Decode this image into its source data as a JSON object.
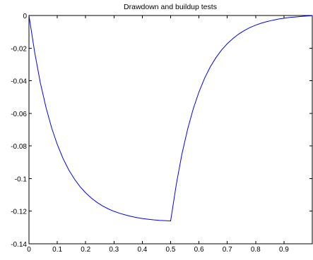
{
  "chart_data": {
    "type": "line",
    "title": "Drawdown and buildup tests",
    "xlabel": "",
    "ylabel": "",
    "xlim": [
      0,
      1
    ],
    "ylim": [
      -0.14,
      0
    ],
    "grid": false,
    "x_ticks": [
      0,
      0.1,
      0.2,
      0.3,
      0.4,
      0.5,
      0.6,
      0.7,
      0.8,
      0.9
    ],
    "x_tick_labels": [
      "0",
      "0.1",
      "0.2",
      "0.3",
      "0.4",
      "0.5",
      "0.6",
      "0.7",
      "0.8",
      "0.9"
    ],
    "y_ticks": [
      0,
      -0.02,
      -0.04,
      -0.06,
      -0.08,
      -0.1,
      -0.12,
      -0.14
    ],
    "y_tick_labels": [
      "0",
      "-0.02",
      "-0.04",
      "-0.06",
      "-0.08",
      "-0.1",
      "-0.12",
      "-0.14"
    ],
    "series": [
      {
        "color": "#0000ff",
        "x": [
          0,
          0.02,
          0.04,
          0.06,
          0.08,
          0.1,
          0.12,
          0.14,
          0.16,
          0.18,
          0.2,
          0.22,
          0.24,
          0.26,
          0.28,
          0.3,
          0.32,
          0.34,
          0.36,
          0.38,
          0.4,
          0.42,
          0.44,
          0.46,
          0.48,
          0.5,
          0.52,
          0.54,
          0.56,
          0.58,
          0.6,
          0.62,
          0.64,
          0.66,
          0.68,
          0.7,
          0.72,
          0.74,
          0.76,
          0.78,
          0.8,
          0.82,
          0.84,
          0.86,
          0.88,
          0.9,
          0.92,
          0.94,
          0.96,
          0.98,
          1.0
        ],
        "y": [
          0,
          -0.0224,
          -0.0411,
          -0.0564,
          -0.0689,
          -0.0791,
          -0.0876,
          -0.0945,
          -0.1002,
          -0.1049,
          -0.1087,
          -0.1119,
          -0.1146,
          -0.1168,
          -0.1186,
          -0.1201,
          -0.1213,
          -0.1223,
          -0.1232,
          -0.1239,
          -0.1245,
          -0.1249,
          -0.1253,
          -0.1256,
          -0.1258,
          -0.126,
          -0.1036,
          -0.0849,
          -0.0696,
          -0.0571,
          -0.0469,
          -0.0384,
          -0.0315,
          -0.0258,
          -0.0211,
          -0.0173,
          -0.0141,
          -0.0114,
          -0.0092,
          -0.0074,
          -0.0059,
          -0.0047,
          -0.0037,
          -0.0029,
          -0.0022,
          -0.0017,
          -0.0012,
          -0.0009,
          -0.0006,
          -0.0003,
          -0.0001
        ]
      }
    ]
  }
}
